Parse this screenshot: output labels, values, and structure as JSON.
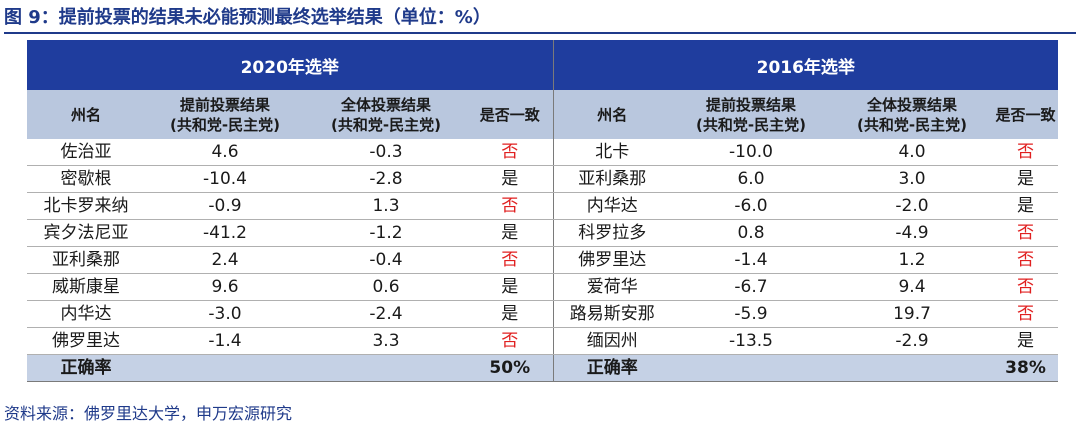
{
  "title": "图 9：提前投票的结果未必能预测最终选举结果（单位：%）",
  "colors": {
    "header_blue": "#1f3d9e",
    "subheader": "#b9c7de",
    "mismatch_red": "#e02020"
  },
  "table": {
    "group_2020": "2020年选举",
    "group_2016": "2016年选举",
    "col_state": "州名",
    "col_early": "提前投票结果\n(共和党-民主党)",
    "col_total": "全体投票结果\n(共和党-民主党)",
    "col_match": "是否一致",
    "rows": [
      {
        "s20": "佐治亚",
        "e20": "4.6",
        "t20": "-0.3",
        "m20": "否",
        "s16": "北卡",
        "e16": "-10.0",
        "t16": "4.0",
        "m16": "否"
      },
      {
        "s20": "密歇根",
        "e20": "-10.4",
        "t20": "-2.8",
        "m20": "是",
        "s16": "亚利桑那",
        "e16": "6.0",
        "t16": "3.0",
        "m16": "是"
      },
      {
        "s20": "北卡罗来纳",
        "e20": "-0.9",
        "t20": "1.3",
        "m20": "否",
        "s16": "内华达",
        "e16": "-6.0",
        "t16": "-2.0",
        "m16": "是"
      },
      {
        "s20": "宾夕法尼亚",
        "e20": "-41.2",
        "t20": "-1.2",
        "m20": "是",
        "s16": "科罗拉多",
        "e16": "0.8",
        "t16": "-4.9",
        "m16": "否"
      },
      {
        "s20": "亚利桑那",
        "e20": "2.4",
        "t20": "-0.4",
        "m20": "否",
        "s16": "佛罗里达",
        "e16": "-1.4",
        "t16": "1.2",
        "m16": "否"
      },
      {
        "s20": "威斯康星",
        "e20": "9.6",
        "t20": "0.6",
        "m20": "是",
        "s16": "爱荷华",
        "e16": "-6.7",
        "t16": "9.4",
        "m16": "否"
      },
      {
        "s20": "内华达",
        "e20": "-3.0",
        "t20": "-2.4",
        "m20": "是",
        "s16": "路易斯安那",
        "e16": "-5.9",
        "t16": "19.7",
        "m16": "否"
      },
      {
        "s20": "佛罗里达",
        "e20": "-1.4",
        "t20": "3.3",
        "m20": "否",
        "s16": "缅因州",
        "e16": "-13.5",
        "t16": "-2.9",
        "m16": "是"
      }
    ],
    "accuracy_label": "正确率",
    "accuracy_2020": "50%",
    "accuracy_2016": "38%"
  },
  "source": "资料来源：佛罗里达大学，申万宏源研究"
}
